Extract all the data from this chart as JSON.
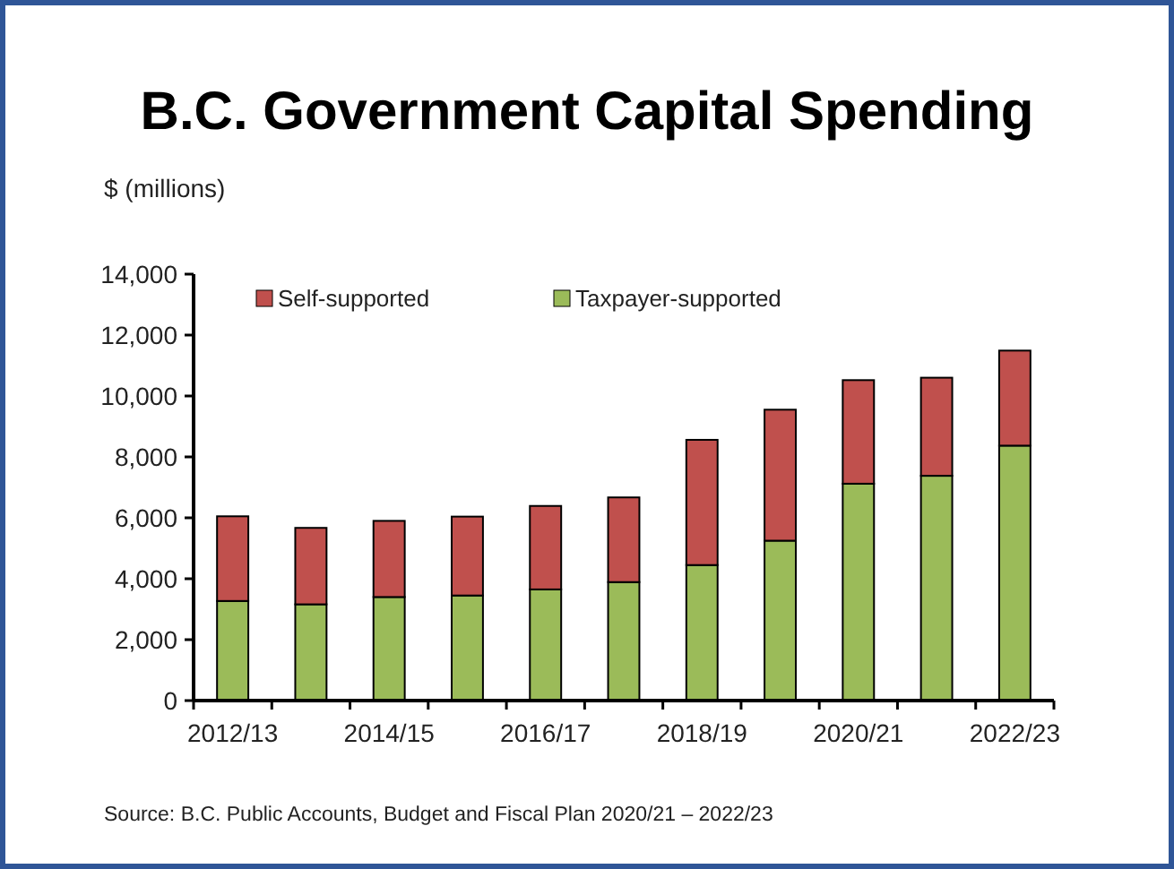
{
  "chart_data": {
    "type": "bar",
    "title": "B.C. Government Capital Spending",
    "ylabel": "$ (millions)",
    "stacked": true,
    "categories": [
      "2012/13",
      null,
      "2014/15",
      null,
      "2016/17",
      null,
      "2018/19",
      null,
      "2020/21",
      null,
      "2022/23"
    ],
    "series": [
      {
        "name": "Taxpayer-supported",
        "color": "#9bbb59",
        "values": [
          3270,
          3160,
          3400,
          3450,
          3650,
          3890,
          4450,
          5250,
          7120,
          7380,
          8370
        ]
      },
      {
        "name": "Self-supported",
        "color": "#c0504d",
        "values": [
          2780,
          2510,
          2500,
          2590,
          2740,
          2780,
          4110,
          4300,
          3400,
          3220,
          3120
        ]
      }
    ],
    "ylim": [
      0,
      14000
    ],
    "yticks": [
      {
        "value": 0,
        "label": "0"
      },
      {
        "value": 2000,
        "label": "2,000"
      },
      {
        "value": 4000,
        "label": "4,000"
      },
      {
        "value": 6000,
        "label": "6,000"
      },
      {
        "value": 8000,
        "label": "8,000"
      },
      {
        "value": 10000,
        "label": "10,000"
      },
      {
        "value": 12000,
        "label": "12,000"
      },
      {
        "value": 14000,
        "label": "14,000"
      }
    ],
    "grid": false,
    "legend": "top left",
    "annotations": [
      "Source:  B.C. Public Accounts, Budget and Fiscal Plan 2020/21 – 2022/23"
    ]
  }
}
